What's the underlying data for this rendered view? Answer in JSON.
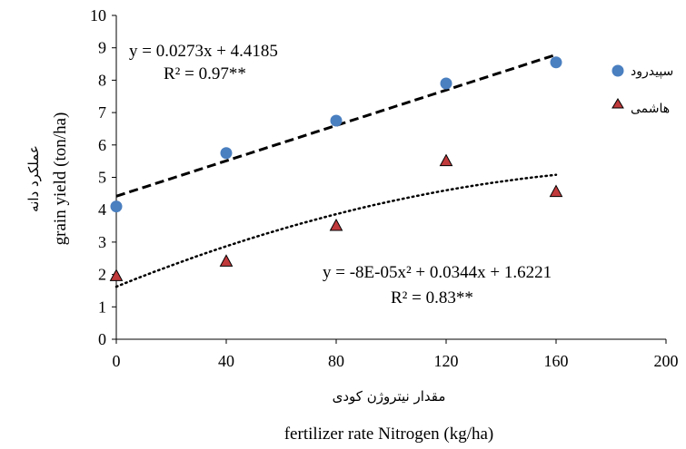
{
  "chart_data": {
    "type": "scatter",
    "x": [
      0,
      40,
      80,
      120,
      160
    ],
    "xlim": [
      0,
      200
    ],
    "ylim": [
      0,
      10
    ],
    "xticks": [
      "0",
      "40",
      "80",
      "120",
      "160",
      "200"
    ],
    "yticks": [
      "0",
      "1",
      "2",
      "3",
      "4",
      "5",
      "6",
      "7",
      "8",
      "9",
      "10"
    ],
    "xlabel_fa": "مقدار نیتروژن کودی",
    "xlabel_en": "fertilizer rate  Nitrogen (kg/ha)",
    "ylabel_fa": "عملکرد دانه",
    "ylabel_en": "grain yield (ton/ha)",
    "grid": false,
    "legend_position": "right",
    "series": [
      {
        "name": "سپیدرود",
        "marker": "circle",
        "color": "#4a7fc0",
        "values": [
          4.1,
          5.75,
          6.75,
          7.9,
          8.55
        ],
        "trend": {
          "type": "linear",
          "slope": 0.0273,
          "intercept": 4.4185,
          "style": "dashed"
        },
        "equation": "y = 0.0273x + 4.4185",
        "r2": "R² = 0.97**"
      },
      {
        "name": "هاشمی",
        "marker": "triangle",
        "color": "#c0393b",
        "values": [
          1.95,
          2.4,
          3.5,
          5.5,
          4.55
        ],
        "trend": {
          "type": "poly2",
          "a": -8e-05,
          "b": 0.0344,
          "c": 1.6221,
          "style": "dotted"
        },
        "equation": "y = -8E-05x² + 0.0344x + 1.6221",
        "r2": "R² = 0.83**"
      }
    ]
  }
}
